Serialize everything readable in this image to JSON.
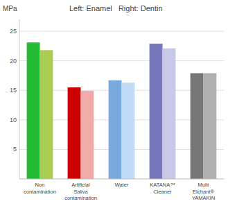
{
  "chart_data": {
    "type": "bar",
    "title": "Left: Enamel   Right: Dentin",
    "y_label": "MPa",
    "categories": [
      "Non\ncontamination",
      "Artificial\nSaliva\ncontamination",
      "Water",
      "KATANA™\nCleaner",
      "Multi\nEtchant®\nYAMAKIN"
    ],
    "series": [
      {
        "colors": [
          "#22bb33",
          "#cc0000",
          "#7aaadd",
          "#7777bb",
          "#777777"
        ],
        "values": [
          23.1,
          15.5,
          16.7,
          22.9,
          17.9
        ]
      },
      {
        "colors": [
          "#aacc55",
          "#f0aaaa",
          "#c0ddf5",
          "#c8c8e8",
          "#b0b0b0"
        ],
        "values": [
          21.8,
          14.9,
          16.3,
          22.1,
          17.9
        ]
      }
    ],
    "ylim": [
      0,
      27
    ],
    "yticks": [
      5,
      10,
      15,
      20,
      25
    ],
    "grid": true
  }
}
